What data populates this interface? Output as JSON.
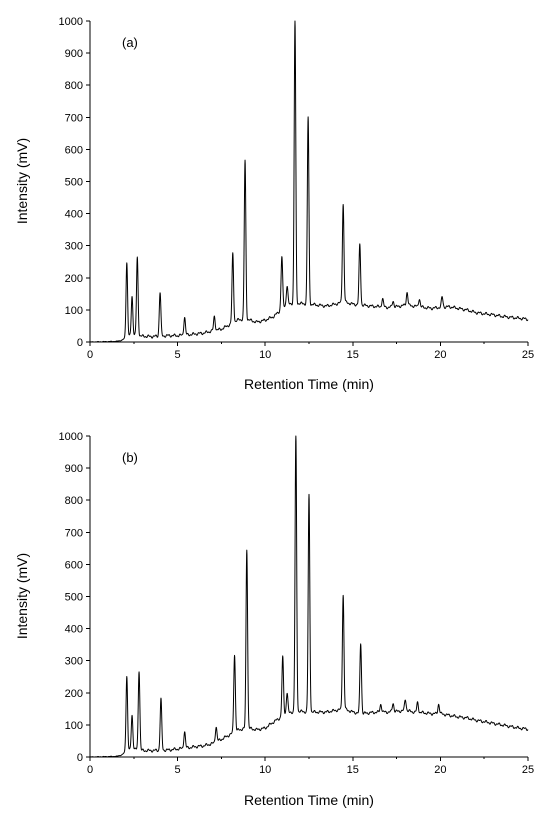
{
  "chart_data": [
    {
      "type": "line",
      "panel_label": "(a)",
      "xlabel": "Retention Time (min)",
      "ylabel": "Intensity (mV)",
      "xlim": [
        0,
        25
      ],
      "ylim": [
        0,
        1000
      ],
      "xticks": [
        0,
        5,
        10,
        15,
        20,
        25
      ],
      "yticks": [
        0,
        100,
        200,
        300,
        400,
        500,
        600,
        700,
        800,
        900,
        1000
      ],
      "grid": false,
      "legend": "none",
      "baseline": [
        [
          0,
          0
        ],
        [
          1.5,
          2
        ],
        [
          1.8,
          5
        ],
        [
          2.0,
          12
        ],
        [
          2.5,
          22
        ],
        [
          3.0,
          18
        ],
        [
          3.5,
          17
        ],
        [
          4.5,
          20
        ],
        [
          5.0,
          20
        ],
        [
          5.5,
          22
        ],
        [
          6.0,
          25
        ],
        [
          6.5,
          28
        ],
        [
          7.0,
          35
        ],
        [
          7.5,
          40
        ],
        [
          8.0,
          55
        ],
        [
          8.5,
          70
        ],
        [
          9.0,
          70
        ],
        [
          9.5,
          62
        ],
        [
          10.0,
          68
        ],
        [
          10.5,
          80
        ],
        [
          10.8,
          95
        ],
        [
          11.0,
          110
        ],
        [
          11.5,
          120
        ],
        [
          12.0,
          120
        ],
        [
          12.5,
          118
        ],
        [
          13.0,
          115
        ],
        [
          13.5,
          112
        ],
        [
          14.0,
          118
        ],
        [
          14.5,
          125
        ],
        [
          15.0,
          118
        ],
        [
          15.5,
          115
        ],
        [
          16.0,
          112
        ],
        [
          16.5,
          110
        ],
        [
          17.0,
          108
        ],
        [
          17.5,
          110
        ],
        [
          18.0,
          115
        ],
        [
          18.5,
          112
        ],
        [
          19.0,
          108
        ],
        [
          19.5,
          105
        ],
        [
          20.0,
          108
        ],
        [
          20.5,
          110
        ],
        [
          21.0,
          105
        ],
        [
          21.5,
          100
        ],
        [
          22.0,
          92
        ],
        [
          22.5,
          88
        ],
        [
          23.0,
          85
        ],
        [
          23.5,
          80
        ],
        [
          24.0,
          77
        ],
        [
          24.5,
          74
        ],
        [
          25.0,
          71
        ]
      ],
      "peaks": [
        {
          "rt": 2.1,
          "height": 248
        },
        {
          "rt": 2.4,
          "height": 142
        },
        {
          "rt": 2.7,
          "height": 262
        },
        {
          "rt": 4.0,
          "height": 155
        },
        {
          "rt": 5.4,
          "height": 78
        },
        {
          "rt": 7.1,
          "height": 80
        },
        {
          "rt": 8.15,
          "height": 275
        },
        {
          "rt": 8.85,
          "height": 565
        },
        {
          "rt": 10.95,
          "height": 265
        },
        {
          "rt": 11.25,
          "height": 175
        },
        {
          "rt": 11.7,
          "height": 1000
        },
        {
          "rt": 12.45,
          "height": 700
        },
        {
          "rt": 14.45,
          "height": 430
        },
        {
          "rt": 15.4,
          "height": 303
        },
        {
          "rt": 16.7,
          "height": 135
        },
        {
          "rt": 17.3,
          "height": 128
        },
        {
          "rt": 18.1,
          "height": 155
        },
        {
          "rt": 18.8,
          "height": 135
        },
        {
          "rt": 20.1,
          "height": 140
        }
      ]
    },
    {
      "type": "line",
      "panel_label": "(b)",
      "xlabel": "Retention Time (min)",
      "ylabel": "Intensity (mV)",
      "xlim": [
        0,
        25
      ],
      "ylim": [
        0,
        1000
      ],
      "xticks": [
        0,
        5,
        10,
        15,
        20,
        25
      ],
      "yticks": [
        0,
        100,
        200,
        300,
        400,
        500,
        600,
        700,
        800,
        900,
        1000
      ],
      "grid": false,
      "legend": "none",
      "baseline": [
        [
          0,
          0
        ],
        [
          1.5,
          2
        ],
        [
          1.8,
          6
        ],
        [
          2.0,
          15
        ],
        [
          2.5,
          25
        ],
        [
          3.0,
          20
        ],
        [
          3.5,
          20
        ],
        [
          4.5,
          22
        ],
        [
          5.0,
          25
        ],
        [
          5.5,
          28
        ],
        [
          6.0,
          32
        ],
        [
          6.5,
          35
        ],
        [
          7.0,
          42
        ],
        [
          7.5,
          55
        ],
        [
          8.0,
          70
        ],
        [
          8.5,
          85
        ],
        [
          9.0,
          90
        ],
        [
          9.5,
          85
        ],
        [
          10.0,
          90
        ],
        [
          10.5,
          110
        ],
        [
          10.8,
          120
        ],
        [
          11.0,
          130
        ],
        [
          11.5,
          140
        ],
        [
          12.0,
          142
        ],
        [
          12.5,
          140
        ],
        [
          13.0,
          140
        ],
        [
          13.5,
          140
        ],
        [
          14.0,
          145
        ],
        [
          14.5,
          150
        ],
        [
          15.0,
          140
        ],
        [
          15.5,
          135
        ],
        [
          16.0,
          138
        ],
        [
          16.5,
          140
        ],
        [
          17.0,
          140
        ],
        [
          17.5,
          142
        ],
        [
          18.0,
          145
        ],
        [
          18.5,
          140
        ],
        [
          19.0,
          138
        ],
        [
          19.5,
          135
        ],
        [
          20.0,
          135
        ],
        [
          20.5,
          130
        ],
        [
          21.0,
          125
        ],
        [
          21.5,
          122
        ],
        [
          22.0,
          115
        ],
        [
          22.5,
          110
        ],
        [
          23.0,
          105
        ],
        [
          23.5,
          100
        ],
        [
          24.0,
          95
        ],
        [
          24.5,
          90
        ],
        [
          25.0,
          87
        ]
      ],
      "peaks": [
        {
          "rt": 2.1,
          "height": 252
        },
        {
          "rt": 2.4,
          "height": 130
        },
        {
          "rt": 2.8,
          "height": 270
        },
        {
          "rt": 4.05,
          "height": 180
        },
        {
          "rt": 5.4,
          "height": 80
        },
        {
          "rt": 7.2,
          "height": 95
        },
        {
          "rt": 8.25,
          "height": 320
        },
        {
          "rt": 8.95,
          "height": 648
        },
        {
          "rt": 11.0,
          "height": 310
        },
        {
          "rt": 11.25,
          "height": 200
        },
        {
          "rt": 11.75,
          "height": 1000
        },
        {
          "rt": 12.5,
          "height": 815
        },
        {
          "rt": 14.45,
          "height": 505
        },
        {
          "rt": 15.45,
          "height": 355
        },
        {
          "rt": 16.6,
          "height": 165
        },
        {
          "rt": 17.3,
          "height": 168
        },
        {
          "rt": 18.0,
          "height": 180
        },
        {
          "rt": 18.7,
          "height": 170
        },
        {
          "rt": 19.9,
          "height": 165
        }
      ]
    }
  ]
}
